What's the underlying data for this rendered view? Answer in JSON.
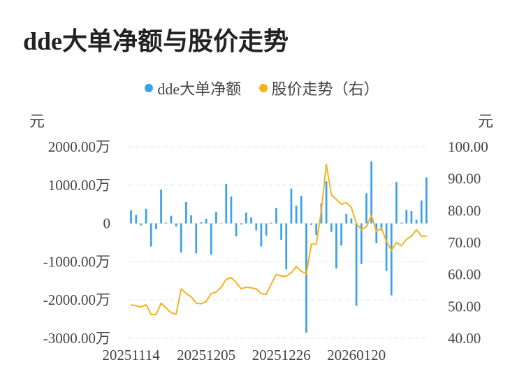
{
  "title": "dde大单净额与股价走势",
  "legend": {
    "bar_label": "dde大单净额",
    "line_label": "股价走势（右）"
  },
  "units": {
    "left": "元",
    "right": "元"
  },
  "colors": {
    "bar": "#3ba1e8",
    "line": "#f5b21f",
    "grid": "#e6e6e6"
  },
  "chart_data": {
    "type": "bar",
    "left_axis": {
      "ylim": [
        -3000,
        2000
      ],
      "ticks": [
        2000,
        1000,
        0,
        -1000,
        -2000,
        -3000
      ],
      "tick_labels": [
        "2000.00万",
        "1000.00万",
        "0",
        "-1000.00万",
        "-2000.00万",
        "-3000.00万"
      ]
    },
    "right_axis": {
      "ylim": [
        40,
        100
      ],
      "ticks": [
        100,
        90,
        80,
        70,
        60,
        50,
        40
      ],
      "tick_labels": [
        "100.00",
        "90.00",
        "80.00",
        "70.00",
        "60.00",
        "50.00",
        "40.00"
      ]
    },
    "x_labels": [
      {
        "index": 0,
        "label": "20251114"
      },
      {
        "index": 15,
        "label": "20251205"
      },
      {
        "index": 30,
        "label": "20251226"
      },
      {
        "index": 45,
        "label": "20260120"
      }
    ],
    "series": [
      {
        "name": "dde大单净额",
        "axis": "left",
        "values": [
          340,
          220,
          -50,
          380,
          -600,
          -150,
          880,
          20,
          200,
          -80,
          -760,
          560,
          210,
          -780,
          30,
          120,
          -820,
          300,
          0,
          1030,
          700,
          -340,
          -30,
          280,
          150,
          -180,
          -600,
          -320,
          20,
          400,
          -430,
          -1200,
          910,
          460,
          720,
          -2850,
          -40,
          -300,
          520,
          1100,
          -220,
          -1180,
          -580,
          250,
          130,
          -2150,
          -1060,
          790,
          1620,
          -520,
          -180,
          -1240,
          -1880,
          1080,
          20,
          350,
          320,
          90,
          600,
          1200
        ]
      },
      {
        "name": "股价走势（右）",
        "axis": "right",
        "values": [
          50.5,
          50.2,
          49.8,
          50.5,
          47.5,
          47.4,
          51.0,
          49.5,
          48.0,
          47.5,
          55.5,
          54.0,
          53.0,
          51.0,
          50.8,
          51.5,
          54.0,
          54.5,
          56.0,
          58.5,
          59.0,
          57.5,
          55.5,
          56.0,
          55.8,
          55.5,
          54.0,
          53.8,
          57.0,
          60.0,
          59.5,
          59.5,
          60.5,
          62.5,
          61.0,
          60.2,
          69.5,
          69.5,
          80.0,
          94.5,
          85.0,
          83.5,
          82.0,
          82.5,
          81.0,
          76.0,
          74.0,
          75.0,
          78.5,
          73.5,
          74.5,
          70.5,
          67.5,
          70.0,
          69.0,
          71.0,
          72.0,
          74.0,
          72.0,
          72.0
        ]
      }
    ]
  }
}
